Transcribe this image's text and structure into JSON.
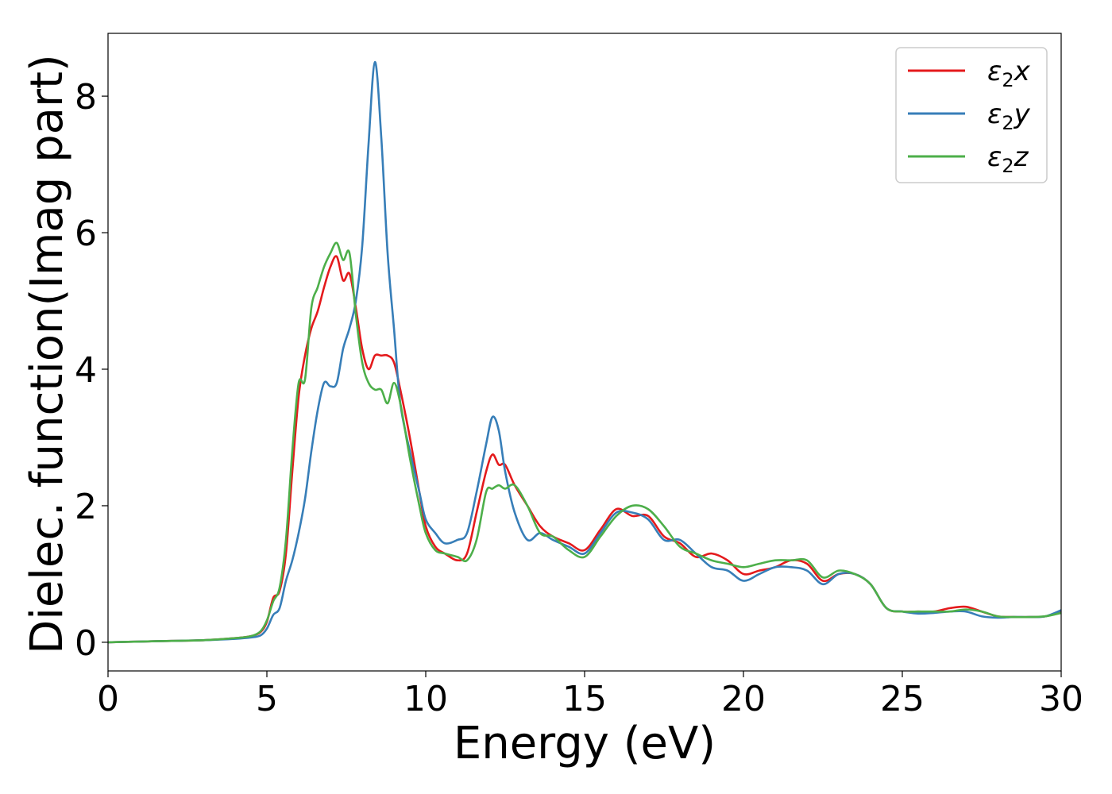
{
  "chart_data": {
    "type": "line",
    "xlabel": "Energy (eV)",
    "ylabel": "Dielec. function(Imag part)",
    "xlim": [
      0,
      30
    ],
    "ylim": [
      -0.42,
      8.92
    ],
    "xticks": [
      0,
      5,
      10,
      15,
      20,
      25,
      30
    ],
    "xtick_labels": [
      "0",
      "5",
      "10",
      "15",
      "20",
      "25",
      "30"
    ],
    "yticks": [
      0,
      2,
      4,
      6,
      8
    ],
    "ytick_labels": [
      "0",
      "2",
      "4",
      "6",
      "8"
    ],
    "grid": false,
    "legend_position": "top-right",
    "series": [
      {
        "name": "ε₂x",
        "legend": {
          "symbol": "ε",
          "sub": "2",
          "axis": "x"
        },
        "color": "#e41a1c",
        "x": [
          0,
          1,
          2,
          3,
          4,
          4.5,
          4.8,
          5.0,
          5.2,
          5.4,
          5.6,
          5.8,
          6.0,
          6.2,
          6.4,
          6.6,
          6.8,
          7.0,
          7.2,
          7.4,
          7.6,
          7.8,
          8.0,
          8.2,
          8.4,
          8.6,
          8.8,
          9.0,
          9.2,
          9.5,
          9.8,
          10.0,
          10.3,
          10.6,
          11.0,
          11.3,
          11.6,
          11.9,
          12.1,
          12.3,
          12.5,
          12.8,
          13.2,
          13.6,
          14.0,
          14.5,
          15.0,
          15.5,
          16.0,
          16.5,
          17.0,
          17.5,
          18.0,
          18.5,
          19.0,
          19.5,
          20.0,
          20.5,
          21.0,
          21.5,
          22.0,
          22.5,
          23.0,
          23.5,
          24.0,
          24.5,
          25.0,
          25.5,
          26.0,
          26.5,
          27.0,
          27.5,
          28.0,
          28.5,
          29.0,
          29.5,
          30.0
        ],
        "values": [
          0,
          0.01,
          0.02,
          0.03,
          0.06,
          0.09,
          0.15,
          0.3,
          0.65,
          0.75,
          1.3,
          2.5,
          3.6,
          4.2,
          4.6,
          4.85,
          5.2,
          5.5,
          5.65,
          5.3,
          5.4,
          4.9,
          4.3,
          4.0,
          4.2,
          4.2,
          4.2,
          4.1,
          3.7,
          3.0,
          2.2,
          1.7,
          1.4,
          1.3,
          1.2,
          1.3,
          1.9,
          2.5,
          2.75,
          2.6,
          2.6,
          2.3,
          2.0,
          1.7,
          1.55,
          1.45,
          1.35,
          1.65,
          1.95,
          1.85,
          1.85,
          1.55,
          1.45,
          1.25,
          1.3,
          1.2,
          1.0,
          1.05,
          1.1,
          1.2,
          1.15,
          0.9,
          1.0,
          1.0,
          0.85,
          0.5,
          0.45,
          0.45,
          0.45,
          0.5,
          0.52,
          0.45,
          0.38,
          0.37,
          0.37,
          0.38,
          0.45
        ]
      },
      {
        "name": "ε₂y",
        "legend": {
          "symbol": "ε",
          "sub": "2",
          "axis": "y"
        },
        "color": "#377eb8",
        "x": [
          0,
          1,
          2,
          3,
          4,
          4.5,
          4.8,
          5.0,
          5.2,
          5.4,
          5.6,
          5.8,
          6.0,
          6.2,
          6.4,
          6.6,
          6.8,
          7.0,
          7.2,
          7.4,
          7.6,
          7.8,
          8.0,
          8.2,
          8.4,
          8.6,
          8.8,
          9.0,
          9.2,
          9.5,
          9.8,
          10.0,
          10.3,
          10.6,
          11.0,
          11.3,
          11.6,
          11.9,
          12.1,
          12.3,
          12.5,
          12.8,
          13.2,
          13.6,
          14.0,
          14.5,
          15.0,
          15.5,
          16.0,
          16.5,
          17.0,
          17.5,
          18.0,
          18.5,
          19.0,
          19.5,
          20.0,
          20.5,
          21.0,
          21.5,
          22.0,
          22.5,
          23.0,
          23.5,
          24.0,
          24.5,
          25.0,
          25.5,
          26.0,
          26.5,
          27.0,
          27.5,
          28.0,
          28.5,
          29.0,
          29.5,
          30.0
        ],
        "values": [
          0,
          0.01,
          0.02,
          0.03,
          0.05,
          0.07,
          0.1,
          0.2,
          0.4,
          0.5,
          0.9,
          1.2,
          1.6,
          2.1,
          2.8,
          3.4,
          3.8,
          3.75,
          3.8,
          4.3,
          4.6,
          5.0,
          5.8,
          7.3,
          8.5,
          7.4,
          5.7,
          4.6,
          3.5,
          2.8,
          2.2,
          1.8,
          1.6,
          1.45,
          1.5,
          1.6,
          2.2,
          2.9,
          3.3,
          3.1,
          2.5,
          1.9,
          1.5,
          1.6,
          1.5,
          1.4,
          1.3,
          1.6,
          1.9,
          1.9,
          1.8,
          1.5,
          1.5,
          1.3,
          1.1,
          1.05,
          0.9,
          1.0,
          1.1,
          1.1,
          1.05,
          0.85,
          1.0,
          1.0,
          0.85,
          0.5,
          0.45,
          0.42,
          0.43,
          0.45,
          0.45,
          0.38,
          0.36,
          0.37,
          0.37,
          0.38,
          0.47
        ]
      },
      {
        "name": "ε₂z",
        "legend": {
          "symbol": "ε",
          "sub": "2",
          "axis": "z"
        },
        "color": "#4daf4a",
        "x": [
          0,
          1,
          2,
          3,
          4,
          4.5,
          4.8,
          5.0,
          5.2,
          5.4,
          5.6,
          5.8,
          6.0,
          6.2,
          6.4,
          6.6,
          6.8,
          7.0,
          7.2,
          7.4,
          7.6,
          7.8,
          8.0,
          8.2,
          8.4,
          8.6,
          8.8,
          9.0,
          9.2,
          9.5,
          9.8,
          10.0,
          10.3,
          10.6,
          11.0,
          11.3,
          11.6,
          11.9,
          12.1,
          12.3,
          12.5,
          12.8,
          13.2,
          13.6,
          14.0,
          14.5,
          15.0,
          15.5,
          16.0,
          16.5,
          17.0,
          17.5,
          18.0,
          18.5,
          19.0,
          19.5,
          20.0,
          20.5,
          21.0,
          21.5,
          22.0,
          22.5,
          23.0,
          23.5,
          24.0,
          24.5,
          25.0,
          25.5,
          26.0,
          26.5,
          27.0,
          27.5,
          28.0,
          28.5,
          29.0,
          29.5,
          30.0
        ],
        "values": [
          0,
          0.01,
          0.02,
          0.03,
          0.06,
          0.09,
          0.16,
          0.32,
          0.6,
          0.8,
          1.5,
          2.8,
          3.8,
          3.85,
          4.9,
          5.2,
          5.5,
          5.7,
          5.85,
          5.6,
          5.7,
          4.8,
          4.1,
          3.8,
          3.7,
          3.7,
          3.5,
          3.8,
          3.5,
          2.7,
          2.0,
          1.6,
          1.35,
          1.3,
          1.25,
          1.2,
          1.5,
          2.2,
          2.25,
          2.3,
          2.25,
          2.3,
          2.0,
          1.6,
          1.55,
          1.35,
          1.25,
          1.55,
          1.85,
          2.0,
          1.95,
          1.7,
          1.4,
          1.3,
          1.2,
          1.15,
          1.1,
          1.15,
          1.2,
          1.2,
          1.2,
          0.95,
          1.05,
          1.0,
          0.85,
          0.5,
          0.45,
          0.45,
          0.45,
          0.45,
          0.48,
          0.45,
          0.38,
          0.37,
          0.37,
          0.38,
          0.43
        ]
      }
    ]
  }
}
